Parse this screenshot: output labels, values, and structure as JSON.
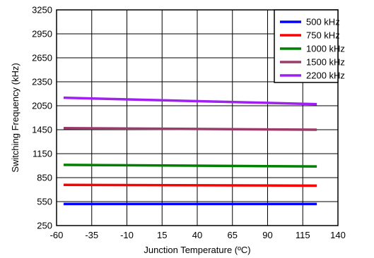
{
  "chart_data": {
    "type": "line",
    "title": "",
    "xlabel": "Junction Temperature (ºC)",
    "ylabel": "Switching Frequency (kHz)",
    "xlim": [
      -60,
      140
    ],
    "ylim": [
      250,
      3250
    ],
    "xticks": [
      -60,
      -35,
      -10,
      15,
      40,
      65,
      90,
      115,
      140
    ],
    "yticks": [
      250,
      550,
      850,
      1150,
      1450,
      2050,
      2350,
      2650,
      2950,
      3250
    ],
    "xtick_labels": [
      "-60",
      "-35",
      "-10",
      "15",
      "40",
      "65",
      "90",
      "115",
      "140"
    ],
    "ytick_labels": [
      "250",
      "550",
      "850",
      "1150",
      "1450",
      "2050",
      "2350",
      "2650",
      "2950",
      "3250"
    ],
    "grid": true,
    "legend_position": "top-right",
    "series": [
      {
        "name": "500 kHz",
        "color": "#0000ff",
        "x": [
          -55,
          125
        ],
        "y": [
          520,
          520
        ]
      },
      {
        "name": "750 kHz",
        "color": "#ff0000",
        "x": [
          -55,
          125
        ],
        "y": [
          760,
          750
        ]
      },
      {
        "name": "1000 kHz",
        "color": "#008000",
        "x": [
          -55,
          125
        ],
        "y": [
          1010,
          990
        ]
      },
      {
        "name": "1500 kHz",
        "color": "#9b3b6b",
        "x": [
          -55,
          125
        ],
        "y": [
          1490,
          1450
        ]
      },
      {
        "name": "2200 kHz",
        "color": "#a020f0",
        "x": [
          -55,
          125
        ],
        "y": [
          2150,
          2070
        ]
      }
    ]
  }
}
